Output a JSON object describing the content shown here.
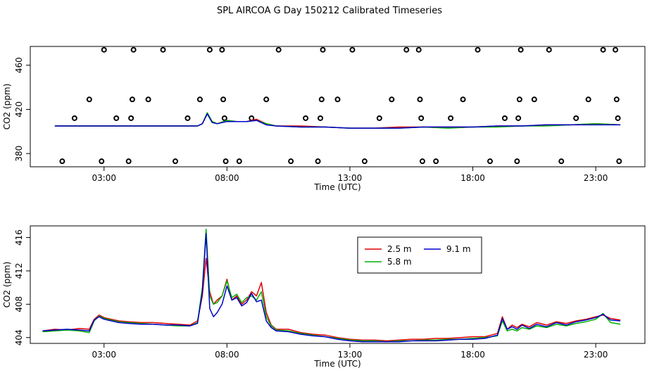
{
  "title": "SPL AIRCOA G  Day 150212  Calibrated Timeseries",
  "colors": {
    "s1": "#e00000",
    "s2": "#00b000",
    "s3": "#0000cc",
    "axis": "#000000"
  },
  "chart_data": [
    {
      "type": "line",
      "xlabel": "Time (UTC)",
      "ylabel": "CO2 (ppm)",
      "xlim": [
        0,
        25
      ],
      "ylim": [
        368,
        477
      ],
      "xticks": [
        3,
        8,
        13,
        18,
        23
      ],
      "xtick_labels": [
        "03:00",
        "08:00",
        "13:00",
        "18:00",
        "23:00"
      ],
      "yticks": [
        380,
        420,
        460
      ],
      "ytick_labels": [
        "380",
        "420",
        "460"
      ],
      "points_series": {
        "name": "",
        "marker": "open-circle",
        "points": [
          [
            1.3,
            373
          ],
          [
            1.8,
            412
          ],
          [
            2.4,
            429
          ],
          [
            2.9,
            373
          ],
          [
            3.0,
            474
          ],
          [
            3.5,
            412
          ],
          [
            4.0,
            373
          ],
          [
            4.1,
            412
          ],
          [
            4.15,
            429
          ],
          [
            4.2,
            474
          ],
          [
            4.8,
            429
          ],
          [
            5.4,
            474
          ],
          [
            5.9,
            373
          ],
          [
            6.4,
            412
          ],
          [
            6.9,
            429
          ],
          [
            7.3,
            474
          ],
          [
            7.8,
            474
          ],
          [
            7.85,
            429
          ],
          [
            7.9,
            412
          ],
          [
            7.95,
            373
          ],
          [
            8.5,
            373
          ],
          [
            9.0,
            412
          ],
          [
            9.6,
            429
          ],
          [
            10.1,
            474
          ],
          [
            10.6,
            373
          ],
          [
            11.2,
            412
          ],
          [
            11.7,
            373
          ],
          [
            11.8,
            412
          ],
          [
            11.85,
            429
          ],
          [
            11.9,
            474
          ],
          [
            12.5,
            429
          ],
          [
            13.1,
            474
          ],
          [
            13.6,
            373
          ],
          [
            14.2,
            412
          ],
          [
            14.7,
            429
          ],
          [
            15.3,
            474
          ],
          [
            15.8,
            474
          ],
          [
            15.85,
            429
          ],
          [
            15.9,
            412
          ],
          [
            15.95,
            373
          ],
          [
            16.5,
            373
          ],
          [
            17.1,
            412
          ],
          [
            17.6,
            429
          ],
          [
            18.2,
            474
          ],
          [
            18.7,
            373
          ],
          [
            19.3,
            412
          ],
          [
            19.8,
            373
          ],
          [
            19.85,
            412
          ],
          [
            19.9,
            429
          ],
          [
            19.95,
            474
          ],
          [
            20.5,
            429
          ],
          [
            21.1,
            474
          ],
          [
            21.6,
            373
          ],
          [
            22.2,
            412
          ],
          [
            22.7,
            429
          ],
          [
            23.3,
            474
          ],
          [
            23.8,
            474
          ],
          [
            23.85,
            429
          ],
          [
            23.9,
            412
          ],
          [
            23.95,
            373
          ]
        ]
      },
      "x": [
        1.0,
        2.0,
        3.0,
        4.0,
        5.0,
        6.0,
        6.8,
        7.0,
        7.2,
        7.4,
        7.6,
        8.0,
        8.4,
        8.8,
        9.2,
        9.6,
        10.0,
        11.0,
        12.0,
        13.0,
        14.0,
        15.0,
        16.0,
        17.0,
        18.0,
        19.0,
        20.0,
        21.0,
        22.0,
        23.0,
        24.0
      ],
      "series": [
        {
          "name": "2.5 m",
          "values": [
            405,
            405,
            405,
            405,
            405,
            405,
            405,
            407,
            416,
            409,
            407,
            410,
            409,
            409,
            411,
            407,
            405,
            405,
            404,
            403,
            403,
            404,
            404,
            404,
            404,
            405,
            405,
            406,
            406,
            407,
            406
          ]
        },
        {
          "name": "5.8 m",
          "values": [
            405,
            405,
            405,
            405,
            405,
            405,
            405,
            407,
            417,
            409,
            407,
            410,
            409,
            409,
            410,
            407,
            405,
            404,
            404,
            403,
            403,
            403,
            404,
            403,
            404,
            404,
            405,
            405,
            406,
            407,
            406
          ]
        },
        {
          "name": "9.1 m",
          "values": [
            405,
            405,
            405,
            405,
            405,
            405,
            405,
            407,
            416,
            408,
            407,
            409,
            409,
            409,
            410,
            406,
            405,
            404,
            404,
            403,
            403,
            403,
            404,
            404,
            404,
            405,
            405,
            406,
            406,
            406,
            406
          ]
        }
      ]
    },
    {
      "type": "line",
      "xlabel": "Time (UTC)",
      "ylabel": "CO2 (ppm)",
      "xlim": [
        0,
        25
      ],
      "ylim": [
        403.3,
        417.4
      ],
      "xticks": [
        3,
        8,
        13,
        18,
        23
      ],
      "xtick_labels": [
        "03:00",
        "08:00",
        "13:00",
        "18:00",
        "23:00"
      ],
      "yticks": [
        404,
        408,
        412,
        416
      ],
      "ytick_labels": [
        "404",
        "408",
        "412",
        "416"
      ],
      "legend": "top-center",
      "x": [
        0.5,
        1.0,
        1.5,
        2.0,
        2.4,
        2.6,
        2.8,
        3.0,
        3.3,
        3.6,
        4.0,
        4.5,
        5.0,
        5.5,
        6.0,
        6.5,
        6.8,
        7.0,
        7.15,
        7.3,
        7.45,
        7.6,
        7.8,
        8.0,
        8.2,
        8.4,
        8.6,
        8.8,
        9.0,
        9.2,
        9.4,
        9.6,
        9.8,
        10.0,
        10.5,
        11.0,
        11.5,
        12.0,
        12.5,
        13.0,
        13.5,
        14.0,
        14.5,
        15.0,
        15.5,
        16.0,
        16.5,
        17.0,
        17.5,
        18.0,
        18.5,
        19.0,
        19.2,
        19.4,
        19.6,
        19.8,
        20.0,
        20.3,
        20.6,
        21.0,
        21.4,
        21.8,
        22.2,
        22.6,
        23.0,
        23.3,
        23.6,
        24.0
      ],
      "series": [
        {
          "name": "2.5 m",
          "values": [
            404.8,
            405.0,
            404.9,
            405.1,
            405.0,
            406.2,
            406.7,
            406.4,
            406.2,
            406.0,
            405.9,
            405.8,
            405.8,
            405.7,
            405.6,
            405.5,
            406.0,
            409.0,
            413.5,
            409.5,
            408.0,
            408.5,
            409.0,
            411.0,
            408.5,
            409.0,
            408.0,
            408.5,
            409.5,
            409.0,
            410.6,
            407.0,
            405.5,
            405.0,
            405.0,
            404.6,
            404.4,
            404.3,
            404.0,
            403.8,
            403.7,
            403.7,
            403.6,
            403.7,
            403.8,
            403.8,
            403.9,
            403.9,
            404.0,
            404.1,
            404.1,
            404.5,
            406.5,
            405.0,
            405.5,
            405.2,
            405.6,
            405.3,
            405.8,
            405.5,
            405.9,
            405.7,
            406.0,
            406.2,
            406.5,
            406.7,
            406.3,
            406.1
          ]
        },
        {
          "name": "5.8 m",
          "values": [
            404.7,
            404.8,
            404.9,
            404.8,
            404.6,
            406.0,
            406.6,
            406.3,
            406.1,
            405.9,
            405.8,
            405.7,
            405.6,
            405.5,
            405.4,
            405.4,
            405.8,
            410.0,
            417.0,
            409.0,
            408.0,
            408.2,
            409.0,
            410.8,
            408.8,
            409.2,
            408.2,
            408.8,
            409.0,
            408.5,
            409.5,
            406.5,
            405.4,
            404.9,
            404.8,
            404.5,
            404.3,
            404.1,
            403.9,
            403.7,
            403.6,
            403.6,
            403.5,
            403.6,
            403.6,
            403.7,
            403.7,
            403.8,
            403.8,
            403.9,
            404.0,
            404.2,
            406.0,
            404.8,
            405.0,
            404.8,
            405.2,
            405.0,
            405.4,
            405.2,
            405.6,
            405.4,
            405.7,
            405.9,
            406.2,
            406.9,
            405.8,
            405.6
          ]
        },
        {
          "name": "9.1 m",
          "values": [
            404.8,
            404.9,
            405.0,
            404.9,
            404.8,
            406.1,
            406.5,
            406.2,
            406.0,
            405.8,
            405.7,
            405.6,
            405.6,
            405.5,
            405.5,
            405.4,
            405.7,
            409.5,
            416.5,
            407.5,
            406.5,
            407.0,
            408.0,
            410.2,
            408.5,
            408.8,
            407.8,
            408.2,
            409.3,
            408.3,
            408.5,
            406.0,
            405.2,
            404.8,
            404.7,
            404.4,
            404.2,
            404.1,
            403.8,
            403.6,
            403.5,
            403.5,
            403.5,
            403.5,
            403.6,
            403.6,
            403.6,
            403.7,
            403.8,
            403.8,
            403.9,
            404.3,
            406.3,
            405.0,
            405.3,
            405.0,
            405.5,
            405.1,
            405.6,
            405.3,
            405.8,
            405.5,
            405.9,
            406.1,
            406.4,
            406.8,
            406.1,
            406.0
          ]
        }
      ]
    }
  ]
}
